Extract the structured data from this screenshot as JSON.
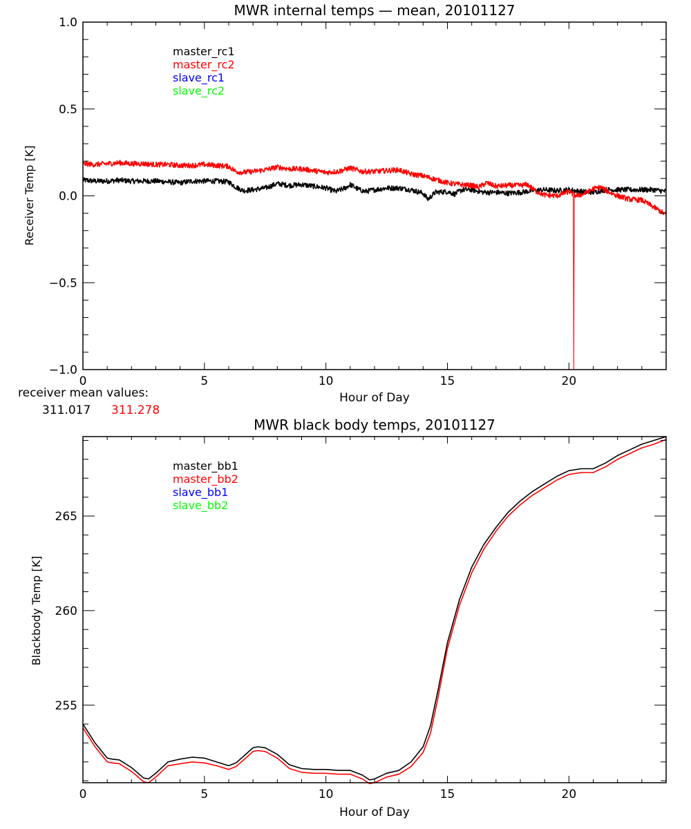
{
  "chart_data": [
    {
      "type": "line",
      "title": "MWR internal temps — mean, 20101127",
      "xlabel": "Hour of Day",
      "ylabel": "Receiver Temp [K]",
      "xlim": [
        0,
        24
      ],
      "ylim": [
        -1.0,
        1.0
      ],
      "x_ticks": [
        0,
        5,
        10,
        15,
        20
      ],
      "x_tick_labels": [
        "0",
        "5",
        "10",
        "15",
        "20"
      ],
      "y_ticks": [
        1.0,
        0.5,
        0.0,
        -0.5,
        -1.0
      ],
      "y_tick_labels": [
        "1.0",
        "0.5",
        "0.0",
        "−0.5",
        "−1.0"
      ],
      "x_minor_step": 1,
      "y_minor_step": 0.1,
      "grid": false,
      "legend_placement": "top-left",
      "legend": [
        {
          "label": "master_rc1",
          "color": "#000000"
        },
        {
          "label": "master_rc2",
          "color": "#ff0000"
        },
        {
          "label": "slave_rc1",
          "color": "#0000ff"
        },
        {
          "label": "slave_rc2",
          "color": "#00ff00"
        }
      ],
      "series": [
        {
          "name": "master_rc1",
          "color": "#000000",
          "noisy": true,
          "x": [
            0,
            0.5,
            1,
            1.5,
            2,
            2.5,
            3,
            3.5,
            4,
            4.5,
            5,
            5.5,
            6,
            6.3,
            6.6,
            7,
            7.5,
            8,
            8.5,
            9,
            9.5,
            10,
            10.4,
            10.8,
            11,
            11.3,
            11.6,
            12,
            12.5,
            13,
            13.5,
            14,
            14.2,
            14.5,
            15,
            15.3,
            15.6,
            16,
            16.5,
            17,
            17.5,
            18,
            18.5,
            19,
            19.5,
            20,
            20.5,
            21,
            21.5,
            22,
            22.5,
            23,
            23.5,
            24
          ],
          "y": [
            0.09,
            0.085,
            0.085,
            0.09,
            0.085,
            0.085,
            0.085,
            0.08,
            0.075,
            0.085,
            0.085,
            0.085,
            0.08,
            0.05,
            0.03,
            0.035,
            0.045,
            0.07,
            0.06,
            0.065,
            0.055,
            0.045,
            0.025,
            0.045,
            0.065,
            0.04,
            0.025,
            0.035,
            0.045,
            0.045,
            0.035,
            0.015,
            -0.02,
            0.02,
            0.025,
            0.01,
            0.035,
            0.035,
            0.02,
            0.02,
            0.015,
            0.02,
            0.03,
            0.035,
            0.03,
            0.035,
            0.025,
            0.02,
            0.035,
            0.035,
            0.035,
            0.035,
            0.035,
            0.025
          ]
        },
        {
          "name": "master_rc2",
          "color": "#ff0000",
          "noisy": true,
          "x": [
            0,
            0.5,
            1,
            1.5,
            2,
            2.5,
            3,
            3.5,
            4,
            4.5,
            5,
            5.5,
            6,
            6.3,
            6.6,
            7,
            7.5,
            8,
            8.5,
            9,
            9.5,
            10,
            10.5,
            11,
            11.5,
            12,
            12.5,
            13,
            13.5,
            14,
            14.5,
            15,
            15.5,
            16,
            16.3,
            16.6,
            17,
            17.5,
            18,
            18.3,
            18.6,
            19,
            19.5,
            20,
            20.3,
            20.6,
            21,
            21.3,
            21.6,
            22,
            22.5,
            23,
            23.5,
            24
          ],
          "y": [
            0.185,
            0.18,
            0.185,
            0.19,
            0.185,
            0.185,
            0.18,
            0.18,
            0.175,
            0.175,
            0.18,
            0.175,
            0.17,
            0.14,
            0.135,
            0.14,
            0.15,
            0.165,
            0.155,
            0.155,
            0.145,
            0.135,
            0.14,
            0.16,
            0.14,
            0.14,
            0.145,
            0.15,
            0.125,
            0.115,
            0.095,
            0.075,
            0.065,
            0.06,
            0.05,
            0.075,
            0.055,
            0.06,
            0.06,
            0.065,
            0.03,
            0.005,
            0.0,
            0.025,
            0.0,
            0.01,
            0.04,
            0.05,
            0.025,
            0.0,
            -0.02,
            -0.025,
            -0.065,
            -0.11
          ]
        },
        {
          "name": "master_rc2_spike",
          "color": "#ff0000",
          "note": "single-sample drop at ~20.2 h",
          "x": [
            20.18,
            20.2,
            20.22
          ],
          "y": [
            0.0,
            -1.0,
            0.0
          ]
        }
      ],
      "annotations": [
        {
          "text": "receiver mean values:",
          "color": "#000000"
        },
        {
          "text": "311.017",
          "color": "#000000"
        },
        {
          "text": "311.278",
          "color": "#ff0000"
        }
      ]
    },
    {
      "type": "line",
      "title": "MWR black body temps, 20101127",
      "xlabel": "Hour of Day",
      "ylabel": "Blackbody Temp [K]",
      "xlim": [
        0,
        24
      ],
      "ylim": [
        250.9,
        269.2
      ],
      "x_ticks": [
        0,
        5,
        10,
        15,
        20
      ],
      "x_tick_labels": [
        "0",
        "5",
        "10",
        "15",
        "20"
      ],
      "y_ticks": [
        255,
        260,
        265
      ],
      "y_tick_labels": [
        "255",
        "260",
        "265"
      ],
      "x_minor_step": 1,
      "y_minor_step": 1,
      "grid": false,
      "legend_placement": "top-left",
      "legend": [
        {
          "label": "master_bb1",
          "color": "#000000"
        },
        {
          "label": "master_bb2",
          "color": "#ff0000"
        },
        {
          "label": "slave_bb1",
          "color": "#0000ff"
        },
        {
          "label": "slave_bb2",
          "color": "#00ff00"
        }
      ],
      "series": [
        {
          "name": "master_bb1",
          "color": "#000000",
          "x": [
            0,
            0.5,
            1,
            1.2,
            1.5,
            2,
            2.5,
            2.7,
            3,
            3.5,
            4,
            4.5,
            5,
            5.5,
            6,
            6.3,
            6.7,
            7,
            7.2,
            7.5,
            8,
            8.5,
            9,
            9.5,
            10,
            10.5,
            11,
            11.5,
            11.8,
            12,
            12.5,
            13,
            13.5,
            14,
            14.3,
            14.6,
            15,
            15.5,
            16,
            16.5,
            17,
            17.5,
            18,
            18.5,
            19,
            19.5,
            20,
            20.5,
            21,
            21.5,
            22,
            22.5,
            23,
            23.5,
            24
          ],
          "y": [
            254.0,
            253.0,
            252.2,
            252.15,
            252.1,
            251.7,
            251.15,
            251.1,
            251.4,
            252.0,
            252.15,
            252.25,
            252.2,
            252.0,
            251.8,
            251.95,
            252.4,
            252.75,
            252.8,
            252.75,
            252.4,
            251.85,
            251.65,
            251.6,
            251.6,
            251.55,
            251.55,
            251.3,
            251.05,
            251.1,
            251.4,
            251.55,
            252.0,
            252.8,
            253.9,
            255.7,
            258.3,
            260.6,
            262.3,
            263.5,
            264.4,
            265.2,
            265.8,
            266.3,
            266.7,
            267.1,
            267.4,
            267.5,
            267.5,
            267.8,
            268.2,
            268.5,
            268.8,
            269.0,
            269.2
          ]
        },
        {
          "name": "master_bb2",
          "color": "#ff0000",
          "x": [
            0,
            0.5,
            1,
            1.2,
            1.5,
            2,
            2.5,
            2.7,
            3,
            3.5,
            4,
            4.5,
            5,
            5.5,
            6,
            6.3,
            6.7,
            7,
            7.2,
            7.5,
            8,
            8.5,
            9,
            9.5,
            10,
            10.5,
            11,
            11.5,
            11.8,
            12,
            12.5,
            13,
            13.5,
            14,
            14.3,
            14.6,
            15,
            15.5,
            16,
            16.5,
            17,
            17.5,
            18,
            18.5,
            19,
            19.5,
            20,
            20.5,
            21,
            21.5,
            22,
            22.5,
            23,
            23.5,
            24
          ],
          "y": [
            253.8,
            252.8,
            252.0,
            251.95,
            251.9,
            251.5,
            250.95,
            250.9,
            251.2,
            251.8,
            251.9,
            252.0,
            251.95,
            251.8,
            251.6,
            251.75,
            252.2,
            252.55,
            252.6,
            252.55,
            252.2,
            251.65,
            251.45,
            251.4,
            251.4,
            251.35,
            251.35,
            251.1,
            250.85,
            250.9,
            251.2,
            251.35,
            251.75,
            252.5,
            253.5,
            255.3,
            258.0,
            260.3,
            262.0,
            263.25,
            264.2,
            265.0,
            265.6,
            266.1,
            266.5,
            266.9,
            267.2,
            267.3,
            267.3,
            267.6,
            268.0,
            268.3,
            268.6,
            268.8,
            269.05
          ]
        }
      ]
    }
  ]
}
